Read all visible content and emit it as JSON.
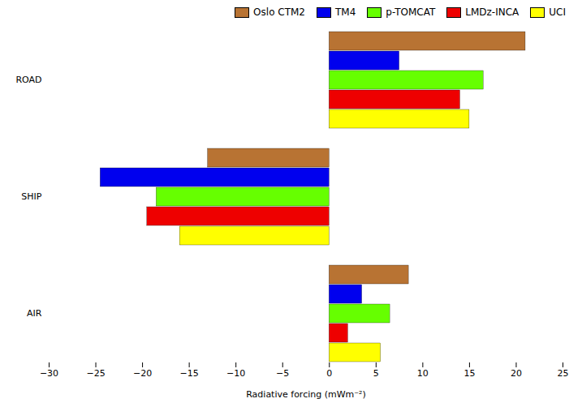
{
  "chart_data": {
    "type": "bar",
    "orientation": "horizontal",
    "categories": [
      "ROAD",
      "SHIP",
      "AIR"
    ],
    "series": [
      {
        "name": "Oslo CTM2",
        "color": "#b87333",
        "values": [
          21.0,
          -13.0,
          8.5
        ]
      },
      {
        "name": "TM4",
        "color": "#0000ee",
        "values": [
          7.5,
          -24.5,
          3.5
        ]
      },
      {
        "name": "p-TOMCAT",
        "color": "#66ff00",
        "values": [
          16.5,
          -18.5,
          6.5
        ]
      },
      {
        "name": "LMDz-INCA",
        "color": "#ee0000",
        "values": [
          14.0,
          -19.5,
          2.0
        ]
      },
      {
        "name": "UCI",
        "color": "#ffff00",
        "values": [
          15.0,
          -16.0,
          5.5
        ]
      }
    ],
    "xlabel": "Radiative forcing (mWm⁻²)",
    "xlim": [
      -30,
      25
    ],
    "xticks": [
      -30,
      -25,
      -20,
      -15,
      -10,
      -5,
      0,
      5,
      10,
      15,
      20,
      25
    ],
    "grid": false,
    "legend": "upper right"
  }
}
